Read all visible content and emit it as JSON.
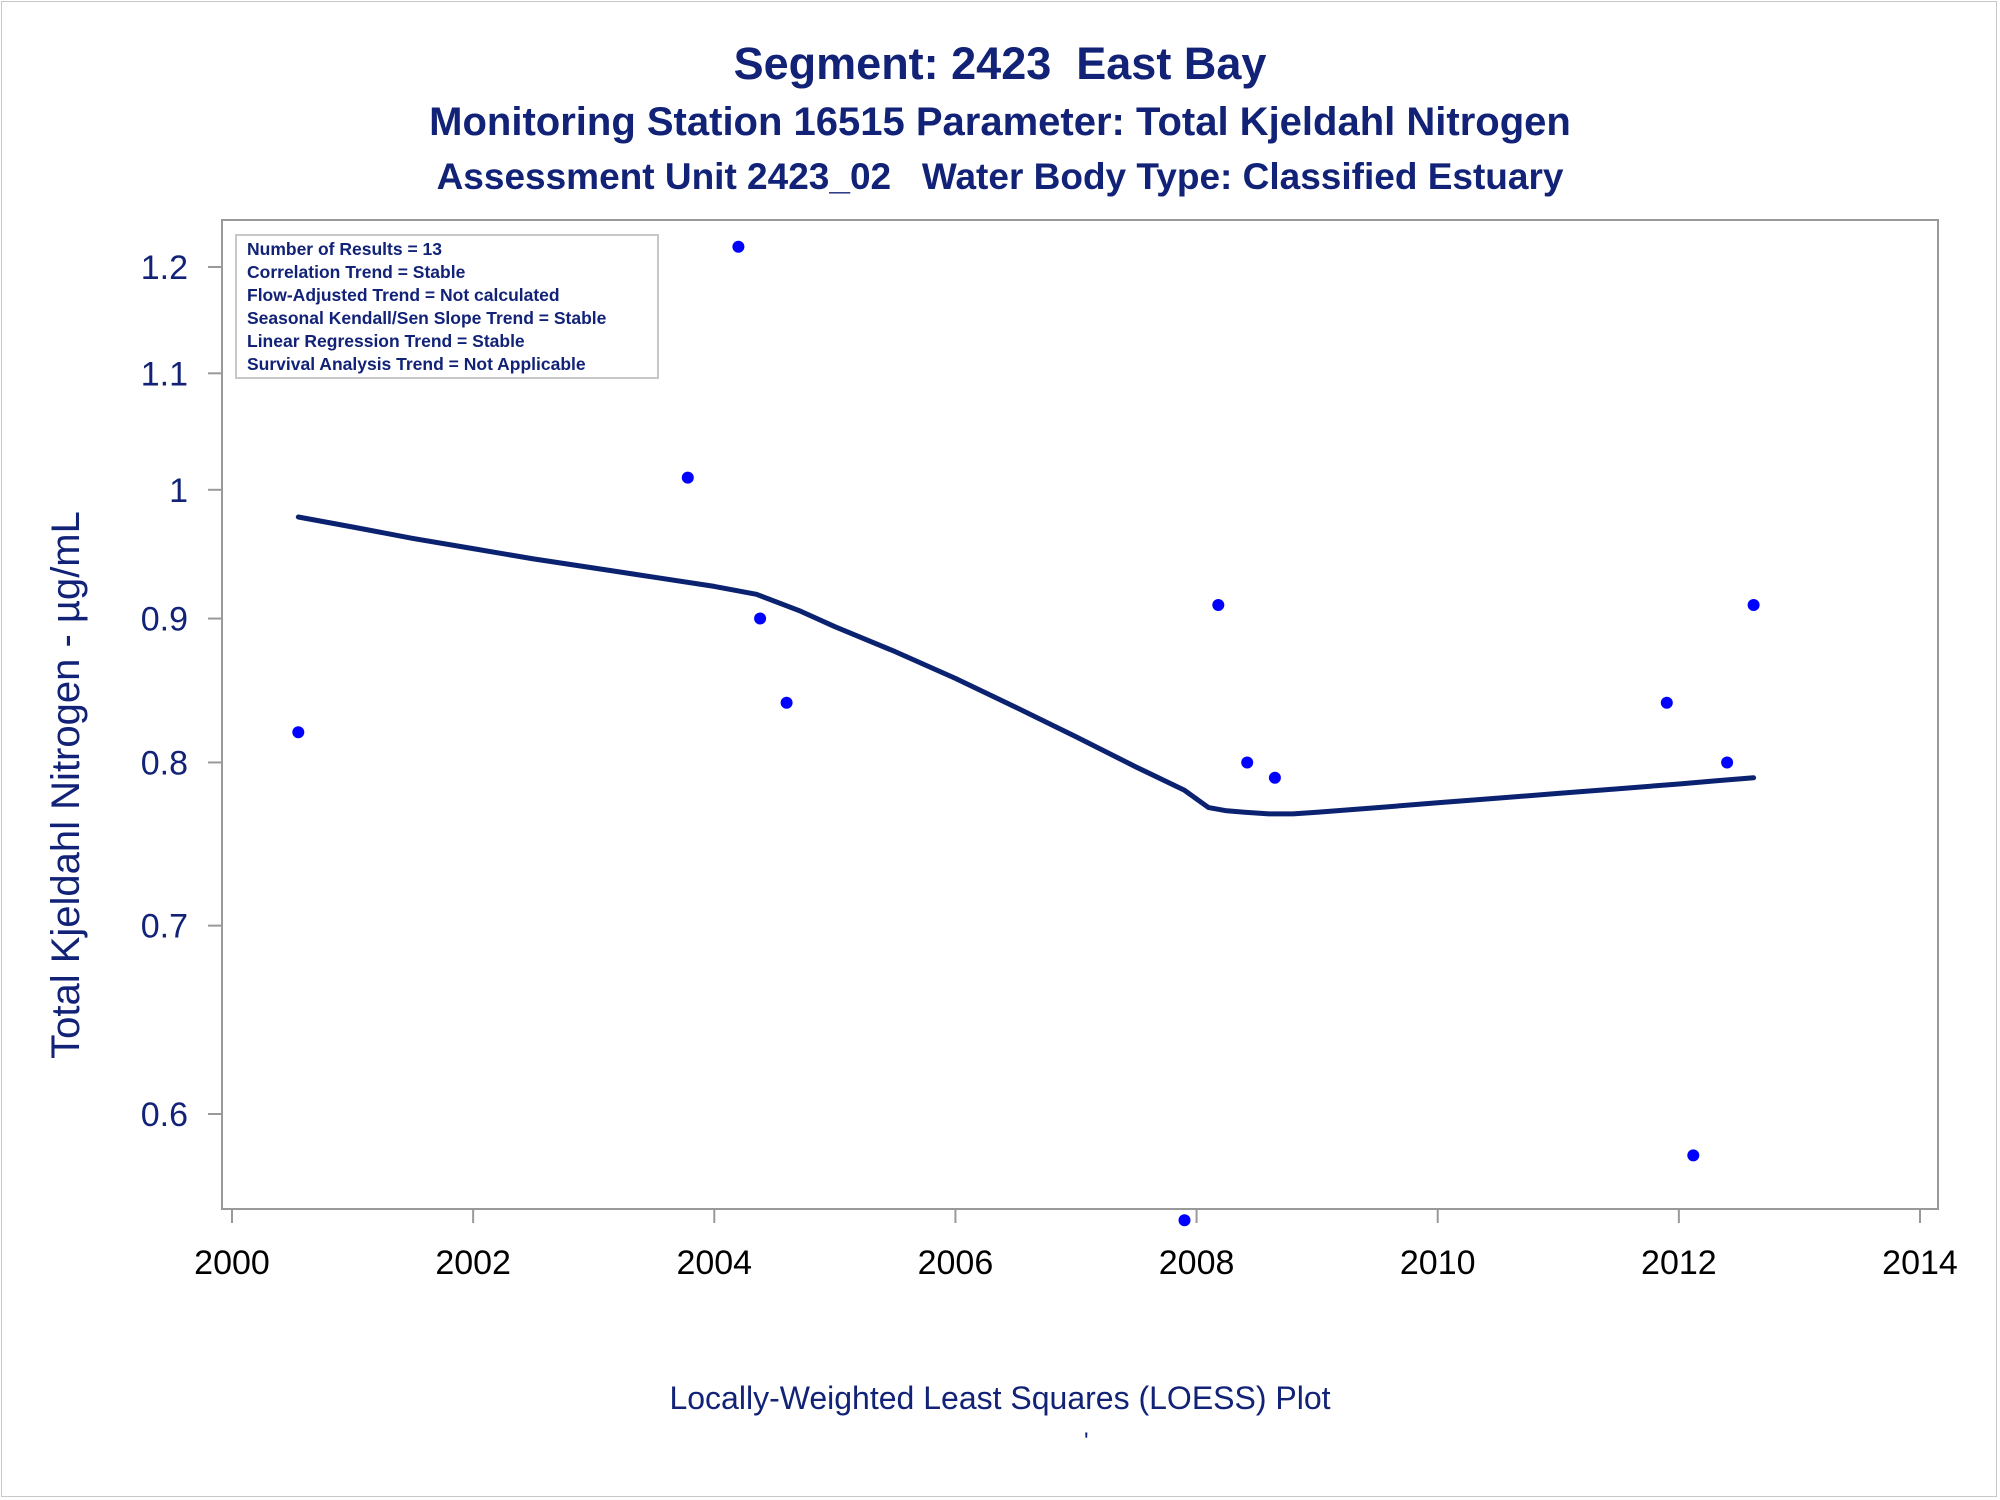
{
  "header": {
    "title": "Segment: 2423  East Bay",
    "subtitle": "Monitoring Station 16515 Parameter: Total Kjeldahl Nitrogen",
    "subtitle2": "Assessment Unit 2423_02   Water Body Type: Classified Estuary"
  },
  "footer": {
    "caption": "Locally-Weighted Least Squares (LOESS) Plot",
    "mark": "'"
  },
  "stats_box": {
    "lines": [
      "Number of Results = 13",
      "Correlation Trend = Stable",
      "Flow-Adjusted Trend = Not calculated",
      "Seasonal Kendall/Sen Slope Trend = Stable",
      "Linear Regression Trend = Stable",
      "Survival Analysis Trend = Not Applicable"
    ]
  },
  "colors": {
    "text": "#112277",
    "points": "#0000ff",
    "loess_line": "#0b2270",
    "axis": "#999999"
  },
  "chart_data": {
    "type": "scatter",
    "title": "Segment: 2423  East Bay",
    "xlabel": "",
    "ylabel": "Total Kjeldahl Nitrogen -  µg/mL",
    "xlim": [
      2000,
      2014
    ],
    "ylim": [
      0.55,
      1.23
    ],
    "yscale": "log",
    "xticks": [
      2000,
      2002,
      2004,
      2006,
      2008,
      2010,
      2012,
      2014
    ],
    "yticks": [
      0.6,
      0.7,
      0.8,
      0.9,
      1.0,
      1.1,
      1.2
    ],
    "ytick_labels": [
      "0.6",
      "0.7",
      "0.8",
      "0.9",
      "1",
      "1.1",
      "1.2"
    ],
    "grid": false,
    "series": [
      {
        "kind": "scatter",
        "x": [
          2000.55,
          2003.78,
          2004.2,
          2004.38,
          2004.6,
          2007.9,
          2008.18,
          2008.42,
          2008.65,
          2011.9,
          2012.12,
          2012.4,
          2012.62
        ],
        "y": [
          0.82,
          1.01,
          1.22,
          0.9,
          0.84,
          0.55,
          0.91,
          0.8,
          0.79,
          0.84,
          0.58,
          0.8,
          0.91
        ]
      },
      {
        "kind": "line",
        "x": [
          2000.55,
          2001.0,
          2001.5,
          2002.0,
          2002.5,
          2003.0,
          2003.5,
          2004.0,
          2004.35,
          2004.7,
          2005.0,
          2005.5,
          2006.0,
          2006.5,
          2007.0,
          2007.5,
          2007.9,
          2008.1,
          2008.25,
          2008.4,
          2008.6,
          2008.8,
          2009.0,
          2009.5,
          2010.0,
          2010.5,
          2011.0,
          2011.5,
          2012.0,
          2012.3,
          2012.62
        ],
        "y": [
          0.978,
          0.97,
          0.961,
          0.953,
          0.945,
          0.938,
          0.931,
          0.924,
          0.918,
          0.906,
          0.894,
          0.876,
          0.857,
          0.837,
          0.817,
          0.797,
          0.782,
          0.771,
          0.769,
          0.768,
          0.767,
          0.767,
          0.768,
          0.771,
          0.774,
          0.777,
          0.78,
          0.783,
          0.786,
          0.788,
          0.79
        ]
      }
    ]
  }
}
